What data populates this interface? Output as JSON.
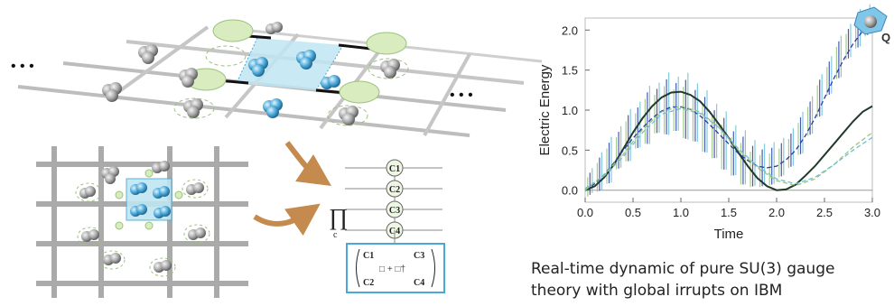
{
  "caption": {
    "line1": "Real-time dynamic of pure SU(3) gauge",
    "line2": "theory with global irrupts on IBM"
  },
  "lattice": {
    "ellipsis_left": "• • •",
    "ellipsis_right": "• • •"
  },
  "circuit": {
    "register_labels": [
      "C1",
      "C2",
      "C3",
      "C4"
    ],
    "product_symbol": "∏",
    "product_subscript": "c",
    "matrix_labels": [
      "C1",
      "C3",
      "C2",
      "C4"
    ],
    "matrix_center": "□ + □†"
  },
  "logo_letter": "Q",
  "colors": {
    "gray_ball": "#9a9a9a",
    "blue_ball": "#4aa8d8",
    "plaquette": "#bfe6f2",
    "link_oval": "#d8ecc0",
    "arrow": "#c48a4e",
    "theory": "#223a2a",
    "run_blue": "#2a3aa8",
    "run_green": "#9bc27a",
    "run_cyan": "#6cc3d6"
  },
  "chart_data": {
    "type": "line",
    "title": "",
    "xlabel": "Time",
    "ylabel": "Electric Energy",
    "xlim": [
      0,
      3
    ],
    "ylim": [
      -0.15,
      2.15
    ],
    "xticks": [
      "0.0",
      "0.5",
      "1.0",
      "1.5",
      "2.0",
      "2.5",
      "3.0"
    ],
    "yticks": [
      "0.0",
      "0.5",
      "1.0",
      "1.5",
      "2.0"
    ],
    "grid": false,
    "legend": "none",
    "series": [
      {
        "style": "solid",
        "color": "#223a2a",
        "x": [
          0,
          0.1,
          0.2,
          0.3,
          0.4,
          0.5,
          0.6,
          0.7,
          0.8,
          0.9,
          1.0,
          1.1,
          1.2,
          1.3,
          1.4,
          1.5,
          1.6,
          1.7,
          1.8,
          1.9,
          2.0,
          2.1,
          2.2,
          2.3,
          2.4,
          2.5,
          2.6,
          2.7,
          2.8,
          2.9,
          3.0
        ],
        "y": [
          0.0,
          0.05,
          0.16,
          0.32,
          0.52,
          0.72,
          0.9,
          1.05,
          1.16,
          1.22,
          1.23,
          1.19,
          1.11,
          0.98,
          0.82,
          0.65,
          0.47,
          0.3,
          0.15,
          0.05,
          0.0,
          0.01,
          0.07,
          0.18,
          0.3,
          0.44,
          0.58,
          0.72,
          0.86,
          0.98,
          1.05
        ]
      },
      {
        "style": "dashed",
        "color": "#2a3aa8",
        "x": [
          0,
          0.1,
          0.2,
          0.3,
          0.4,
          0.5,
          0.6,
          0.7,
          0.8,
          0.9,
          1.0,
          1.1,
          1.2,
          1.3,
          1.4,
          1.5,
          1.6,
          1.7,
          1.8,
          1.9,
          2.0,
          2.1,
          2.2,
          2.3,
          2.4,
          2.5,
          2.6,
          2.7,
          2.8,
          2.9,
          3.0
        ],
        "y": [
          0.0,
          0.08,
          0.2,
          0.34,
          0.5,
          0.65,
          0.78,
          0.9,
          0.99,
          1.04,
          1.04,
          1.01,
          0.93,
          0.82,
          0.7,
          0.58,
          0.46,
          0.37,
          0.3,
          0.28,
          0.3,
          0.38,
          0.5,
          0.68,
          0.9,
          1.15,
          1.4,
          1.63,
          1.83,
          1.99,
          2.1
        ]
      },
      {
        "style": "dashed",
        "color": "#9bc27a",
        "x": [
          0,
          0.2,
          0.4,
          0.6,
          0.8,
          1.0,
          1.2,
          1.4,
          1.6,
          1.8,
          2.0,
          2.2,
          2.4,
          2.6,
          2.8,
          3.0
        ],
        "y": [
          0.0,
          0.2,
          0.45,
          0.76,
          0.98,
          1.05,
          0.98,
          0.78,
          0.5,
          0.28,
          0.12,
          0.06,
          0.14,
          0.32,
          0.54,
          0.72
        ]
      },
      {
        "style": "dashed",
        "color": "#6cc3d6",
        "x": [
          0,
          0.2,
          0.4,
          0.6,
          0.8,
          1.0,
          1.2,
          1.4,
          1.6,
          1.8,
          2.0,
          2.2,
          2.4,
          2.6,
          2.8,
          3.0
        ],
        "y": [
          0.02,
          0.18,
          0.42,
          0.72,
          0.95,
          1.02,
          0.96,
          0.78,
          0.52,
          0.3,
          0.14,
          0.08,
          0.16,
          0.32,
          0.5,
          0.66
        ]
      }
    ],
    "error_bars": {
      "x": [
        0.05,
        0.15,
        0.25,
        0.35,
        0.45,
        0.55,
        0.65,
        0.75,
        0.85,
        0.95,
        1.05,
        1.15,
        1.25,
        1.35,
        1.45,
        1.55,
        1.65,
        1.75,
        1.85,
        1.95,
        2.05,
        2.15,
        2.25,
        2.35,
        2.45,
        2.55,
        2.65,
        2.75,
        2.85,
        2.95
      ],
      "err": [
        0.12,
        0.18,
        0.22,
        0.2,
        0.25,
        0.22,
        0.28,
        0.24,
        0.3,
        0.26,
        0.32,
        0.28,
        0.3,
        0.26,
        0.28,
        0.24,
        0.26,
        0.22,
        0.2,
        0.2,
        0.18,
        0.18,
        0.2,
        0.18,
        0.2,
        0.18,
        0.2,
        0.16,
        0.18,
        0.14
      ]
    }
  }
}
